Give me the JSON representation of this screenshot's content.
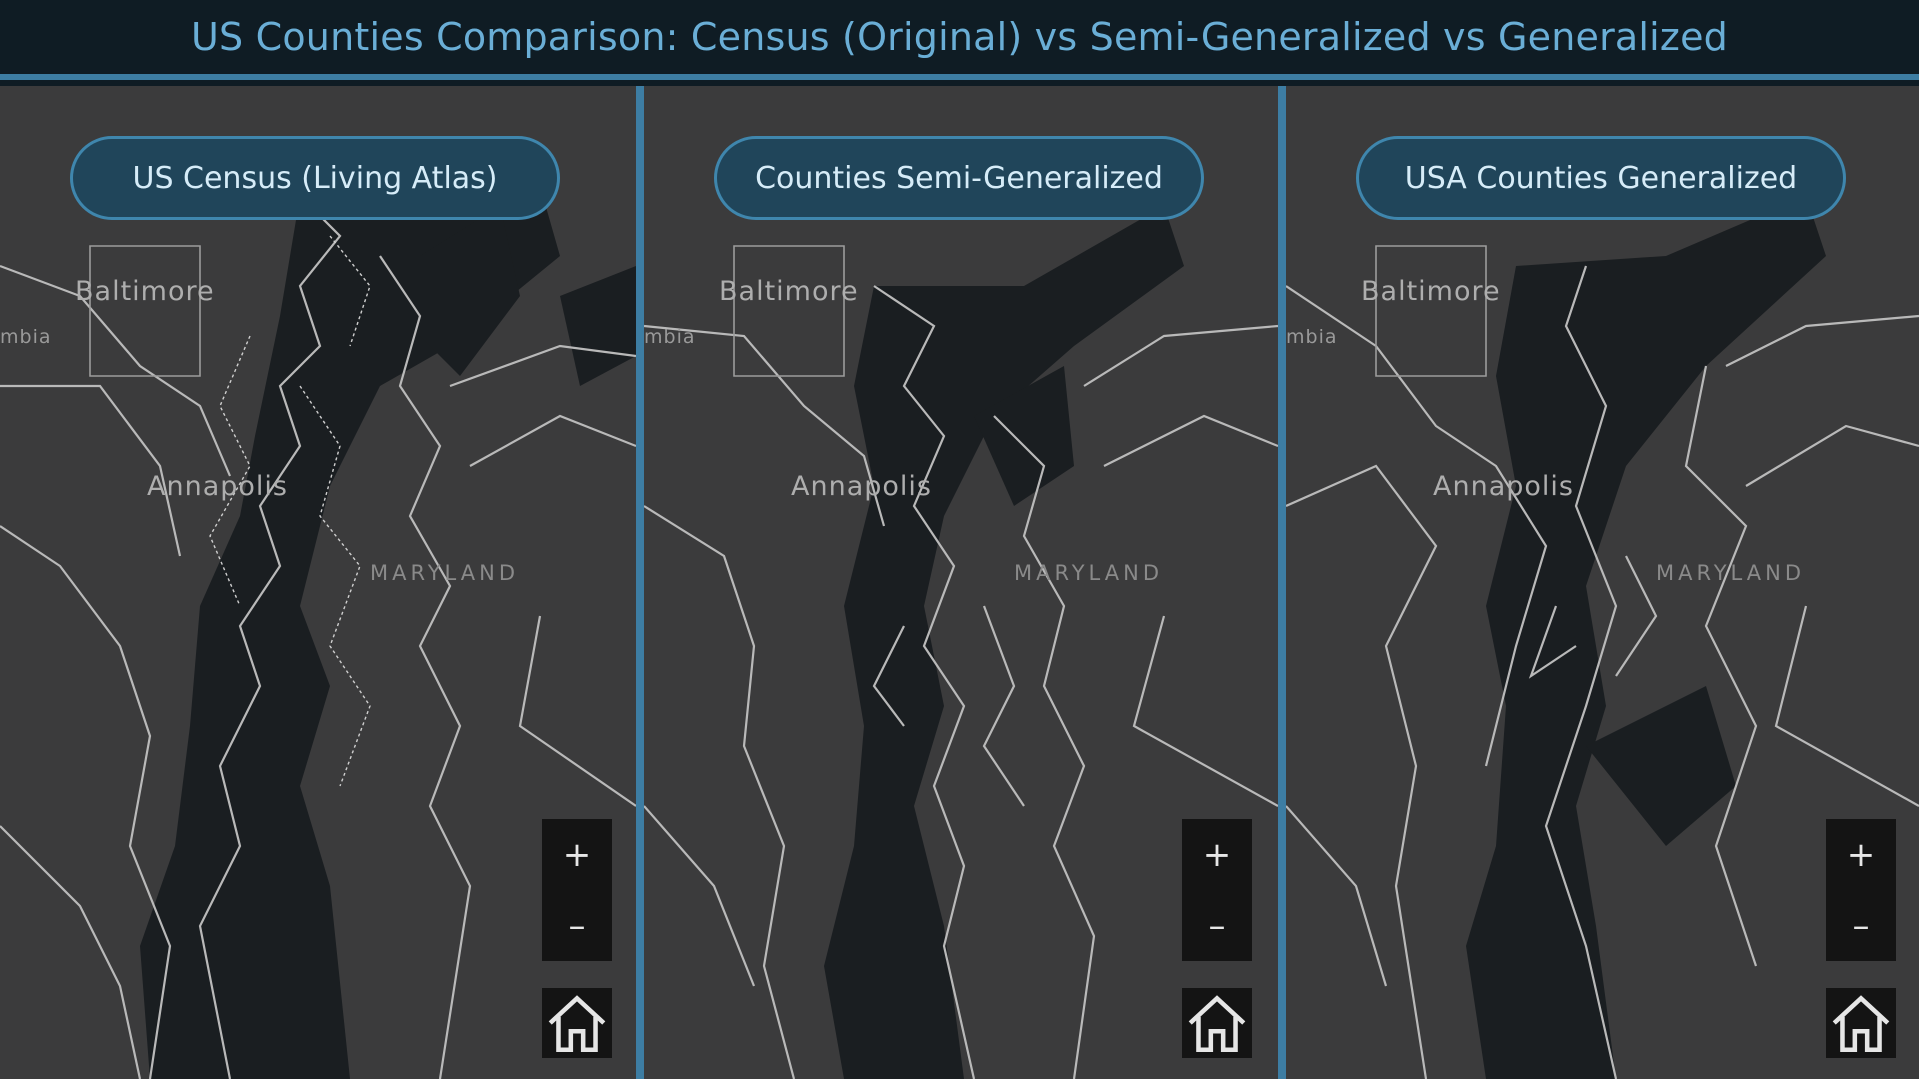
{
  "title": "US Counties Comparison: Census (Original) vs Semi-Generalized vs Generalized",
  "colors": {
    "land": "#3b3b3c",
    "water": "#1a1e21",
    "boundary": "#b9b9b9",
    "accent": "#3d7da3"
  },
  "panels": [
    {
      "label": "US Census (Living Atlas)",
      "places": {
        "city1": "Baltimore",
        "city2": "Annapolis",
        "state": "MARYLAND",
        "partial": "mbia"
      },
      "zoom_in": "+",
      "zoom_out": "–",
      "home_icon": "home-icon"
    },
    {
      "label": "Counties Semi-Generalized",
      "places": {
        "city1": "Baltimore",
        "city2": "Annapolis",
        "state": "MARYLAND",
        "partial": "mbia"
      },
      "zoom_in": "+",
      "zoom_out": "–",
      "home_icon": "home-icon"
    },
    {
      "label": "USA Counties Generalized",
      "places": {
        "city1": "Baltimore",
        "city2": "Annapolis",
        "state": "MARYLAND",
        "partial": "mbia"
      },
      "zoom_in": "+",
      "zoom_out": "–",
      "home_icon": "home-icon"
    }
  ]
}
